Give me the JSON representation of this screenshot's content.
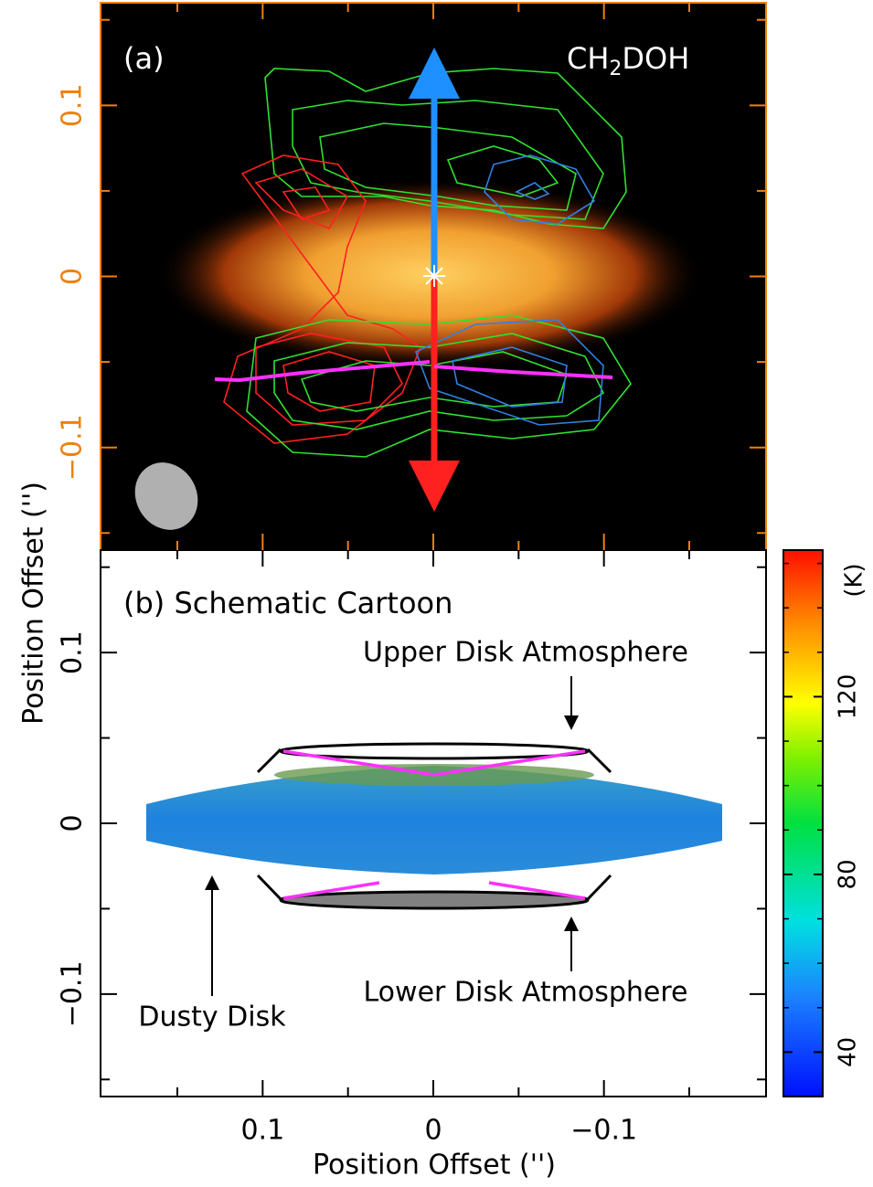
{
  "x_axis": {
    "label": "Position Offset ('')",
    "lim": [
      0.195,
      -0.195
    ],
    "ticks": [
      0.1,
      0,
      {
        "value": -0.1,
        "label": "−0.1"
      }
    ],
    "minor_ticks": [
      0.15,
      0.05,
      -0.05,
      -0.15
    ]
  },
  "y_axis": {
    "label": "Position Offset ('')"
  },
  "panel_a": {
    "tag": "(a)",
    "molecule": [
      "CH",
      "2",
      "DOH"
    ],
    "ylim": [
      -0.16,
      0.16
    ],
    "yticks": [
      {
        "value": -0.1,
        "label": "−0.1"
      },
      0,
      0.1
    ],
    "minor_yticks": [
      -0.15,
      -0.05,
      0.05,
      0.15
    ]
  },
  "panel_b": {
    "title": "(b) Schematic Cartoon",
    "ylim": [
      -0.16,
      0.16
    ],
    "yticks": [
      {
        "value": -0.1,
        "label": "−0.1"
      },
      0,
      0.1
    ],
    "minor_yticks": [
      -0.15,
      -0.05,
      0.05,
      0.15
    ],
    "annotations": [
      "Upper Disk Atmosphere",
      "Lower Disk Atmosphere",
      "Dusty Disk"
    ]
  },
  "colorbar": {
    "label": "(K)",
    "lim": [
      30,
      153
    ],
    "ticks": [
      40,
      80,
      120
    ],
    "minor_ticks": [
      50,
      60,
      70,
      90,
      100,
      110,
      130,
      140,
      150
    ]
  }
}
